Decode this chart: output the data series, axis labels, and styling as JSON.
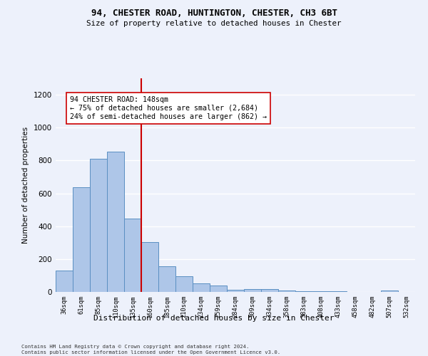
{
  "title_line1": "94, CHESTER ROAD, HUNTINGTON, CHESTER, CH3 6BT",
  "title_line2": "Size of property relative to detached houses in Chester",
  "xlabel": "Distribution of detached houses by size in Chester",
  "ylabel": "Number of detached properties",
  "bar_labels": [
    "36sqm",
    "61sqm",
    "85sqm",
    "110sqm",
    "135sqm",
    "160sqm",
    "185sqm",
    "210sqm",
    "234sqm",
    "259sqm",
    "284sqm",
    "309sqm",
    "334sqm",
    "358sqm",
    "383sqm",
    "408sqm",
    "433sqm",
    "458sqm",
    "482sqm",
    "507sqm",
    "532sqm"
  ],
  "bar_values": [
    130,
    635,
    810,
    855,
    445,
    305,
    155,
    95,
    50,
    38,
    15,
    18,
    18,
    10,
    5,
    5,
    5,
    2,
    2,
    10,
    2
  ],
  "bar_color": "#aec6e8",
  "bar_edge_color": "#5a8fc2",
  "vline_x_idx": 4.5,
  "vline_color": "#cc0000",
  "annotation_text": "94 CHESTER ROAD: 148sqm\n← 75% of detached houses are smaller (2,684)\n24% of semi-detached houses are larger (862) →",
  "annotation_box_color": "#ffffff",
  "annotation_box_edge": "#cc0000",
  "ylim": [
    0,
    1300
  ],
  "yticks": [
    0,
    200,
    400,
    600,
    800,
    1000,
    1200
  ],
  "footnote": "Contains HM Land Registry data © Crown copyright and database right 2024.\nContains public sector information licensed under the Open Government Licence v3.0.",
  "bg_color": "#edf1fb",
  "grid_color": "#ffffff"
}
